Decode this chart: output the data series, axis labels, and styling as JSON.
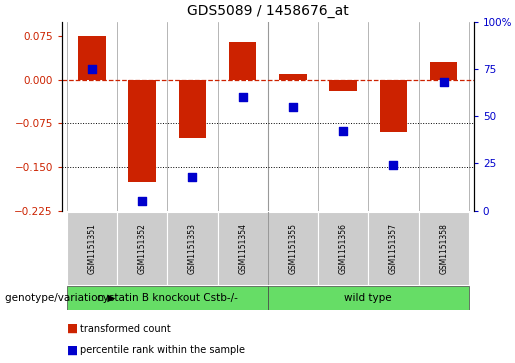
{
  "title": "GDS5089 / 1458676_at",
  "samples": [
    "GSM1151351",
    "GSM1151352",
    "GSM1151353",
    "GSM1151354",
    "GSM1151355",
    "GSM1151356",
    "GSM1151357",
    "GSM1151358"
  ],
  "bar_values": [
    0.075,
    -0.175,
    -0.1,
    0.065,
    0.01,
    -0.02,
    -0.09,
    0.03
  ],
  "percentile_values": [
    75,
    5,
    18,
    60,
    55,
    42,
    24,
    68
  ],
  "bar_color": "#cc2200",
  "dot_color": "#0000cc",
  "ylim_left": [
    -0.225,
    0.1
  ],
  "ylim_right": [
    0,
    100
  ],
  "yticks_left": [
    0.075,
    0,
    -0.075,
    -0.15,
    -0.225
  ],
  "yticks_right": [
    100,
    75,
    50,
    25,
    0
  ],
  "hline_y": 0,
  "dotted_lines": [
    -0.075,
    -0.15
  ],
  "group1_label": "cystatin B knockout Cstb-/-",
  "group2_label": "wild type",
  "group_color": "#66dd66",
  "group_divider": 3.5,
  "genotype_label": "genotype/variation",
  "legend_bar_label": "transformed count",
  "legend_dot_label": "percentile rank within the sample",
  "sample_box_color": "#cccccc",
  "plot_bg_color": "#ffffff",
  "bar_width": 0.55
}
